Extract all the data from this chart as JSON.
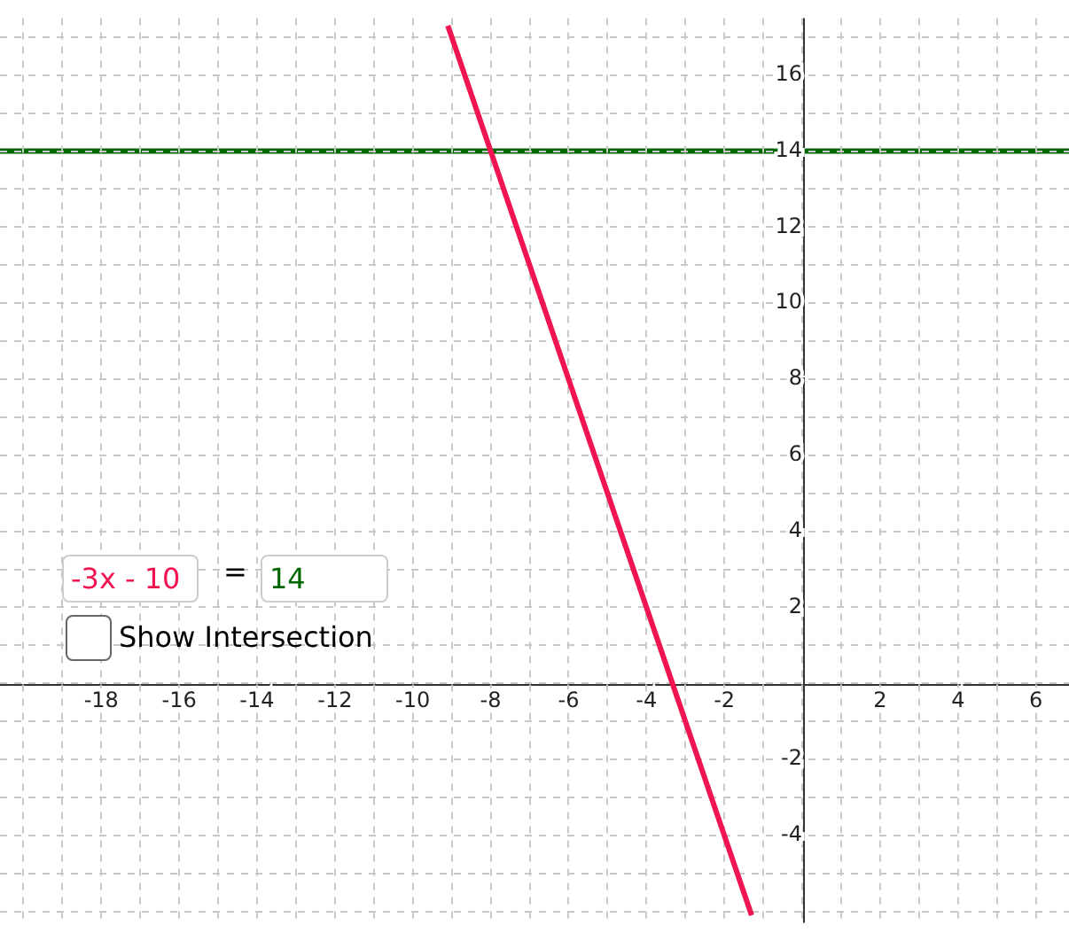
{
  "chart_data": {
    "type": "line",
    "x": [
      -9.1,
      -1.3
    ],
    "series": [
      {
        "color": "#f01450",
        "values": [
          17.3,
          -6.1
        ]
      }
    ],
    "xlim": [
      -20.6,
      6.85
    ],
    "xticks": [
      {
        "value": -20,
        "label": null
      },
      {
        "value": -19,
        "label": null
      },
      -18,
      {
        "value": -17,
        "label": null
      },
      -16,
      {
        "value": -15,
        "label": null
      },
      -14,
      {
        "value": -13,
        "label": null
      },
      -12,
      {
        "value": -11,
        "label": null
      },
      -10,
      {
        "value": -9,
        "label": null
      },
      -8,
      {
        "value": -7,
        "label": null
      },
      -6,
      {
        "value": -5,
        "label": null
      },
      -4,
      {
        "value": -3,
        "label": null
      },
      -2,
      {
        "value": -1,
        "label": null
      },
      {
        "value": 0,
        "label": null
      },
      {
        "value": 1,
        "label": null
      },
      2,
      {
        "value": 3,
        "label": null
      },
      4,
      {
        "value": 5,
        "label": null
      },
      6
    ],
    "ylim": [
      -6.3,
      17.5
    ],
    "yticks": [
      {
        "value": -6,
        "label": null
      },
      {
        "value": -5,
        "label": null
      },
      -4,
      {
        "value": -3,
        "label": null
      },
      -2,
      {
        "value": -1,
        "label": null
      },
      {
        "value": 0,
        "label": null
      },
      {
        "value": 1,
        "label": null
      },
      2,
      {
        "value": 3,
        "label": null
      },
      4,
      {
        "value": 5,
        "label": null
      },
      6,
      {
        "value": 7,
        "label": null
      },
      8,
      {
        "value": 9,
        "label": null
      },
      10,
      {
        "value": 11,
        "label": null
      },
      12,
      {
        "value": 13,
        "label": null
      },
      14,
      {
        "value": 15,
        "label": null
      },
      16,
      {
        "value": 17,
        "label": null
      }
    ],
    "ref_lines": [
      {
        "axis": "y",
        "value": 14,
        "color": "#006600"
      }
    ],
    "annotations": [
      "-3x - 10",
      "=",
      "14",
      "Show Intersection"
    ],
    "grid": true,
    "legend": false,
    "marker": "none",
    "line_style": "solid"
  }
}
